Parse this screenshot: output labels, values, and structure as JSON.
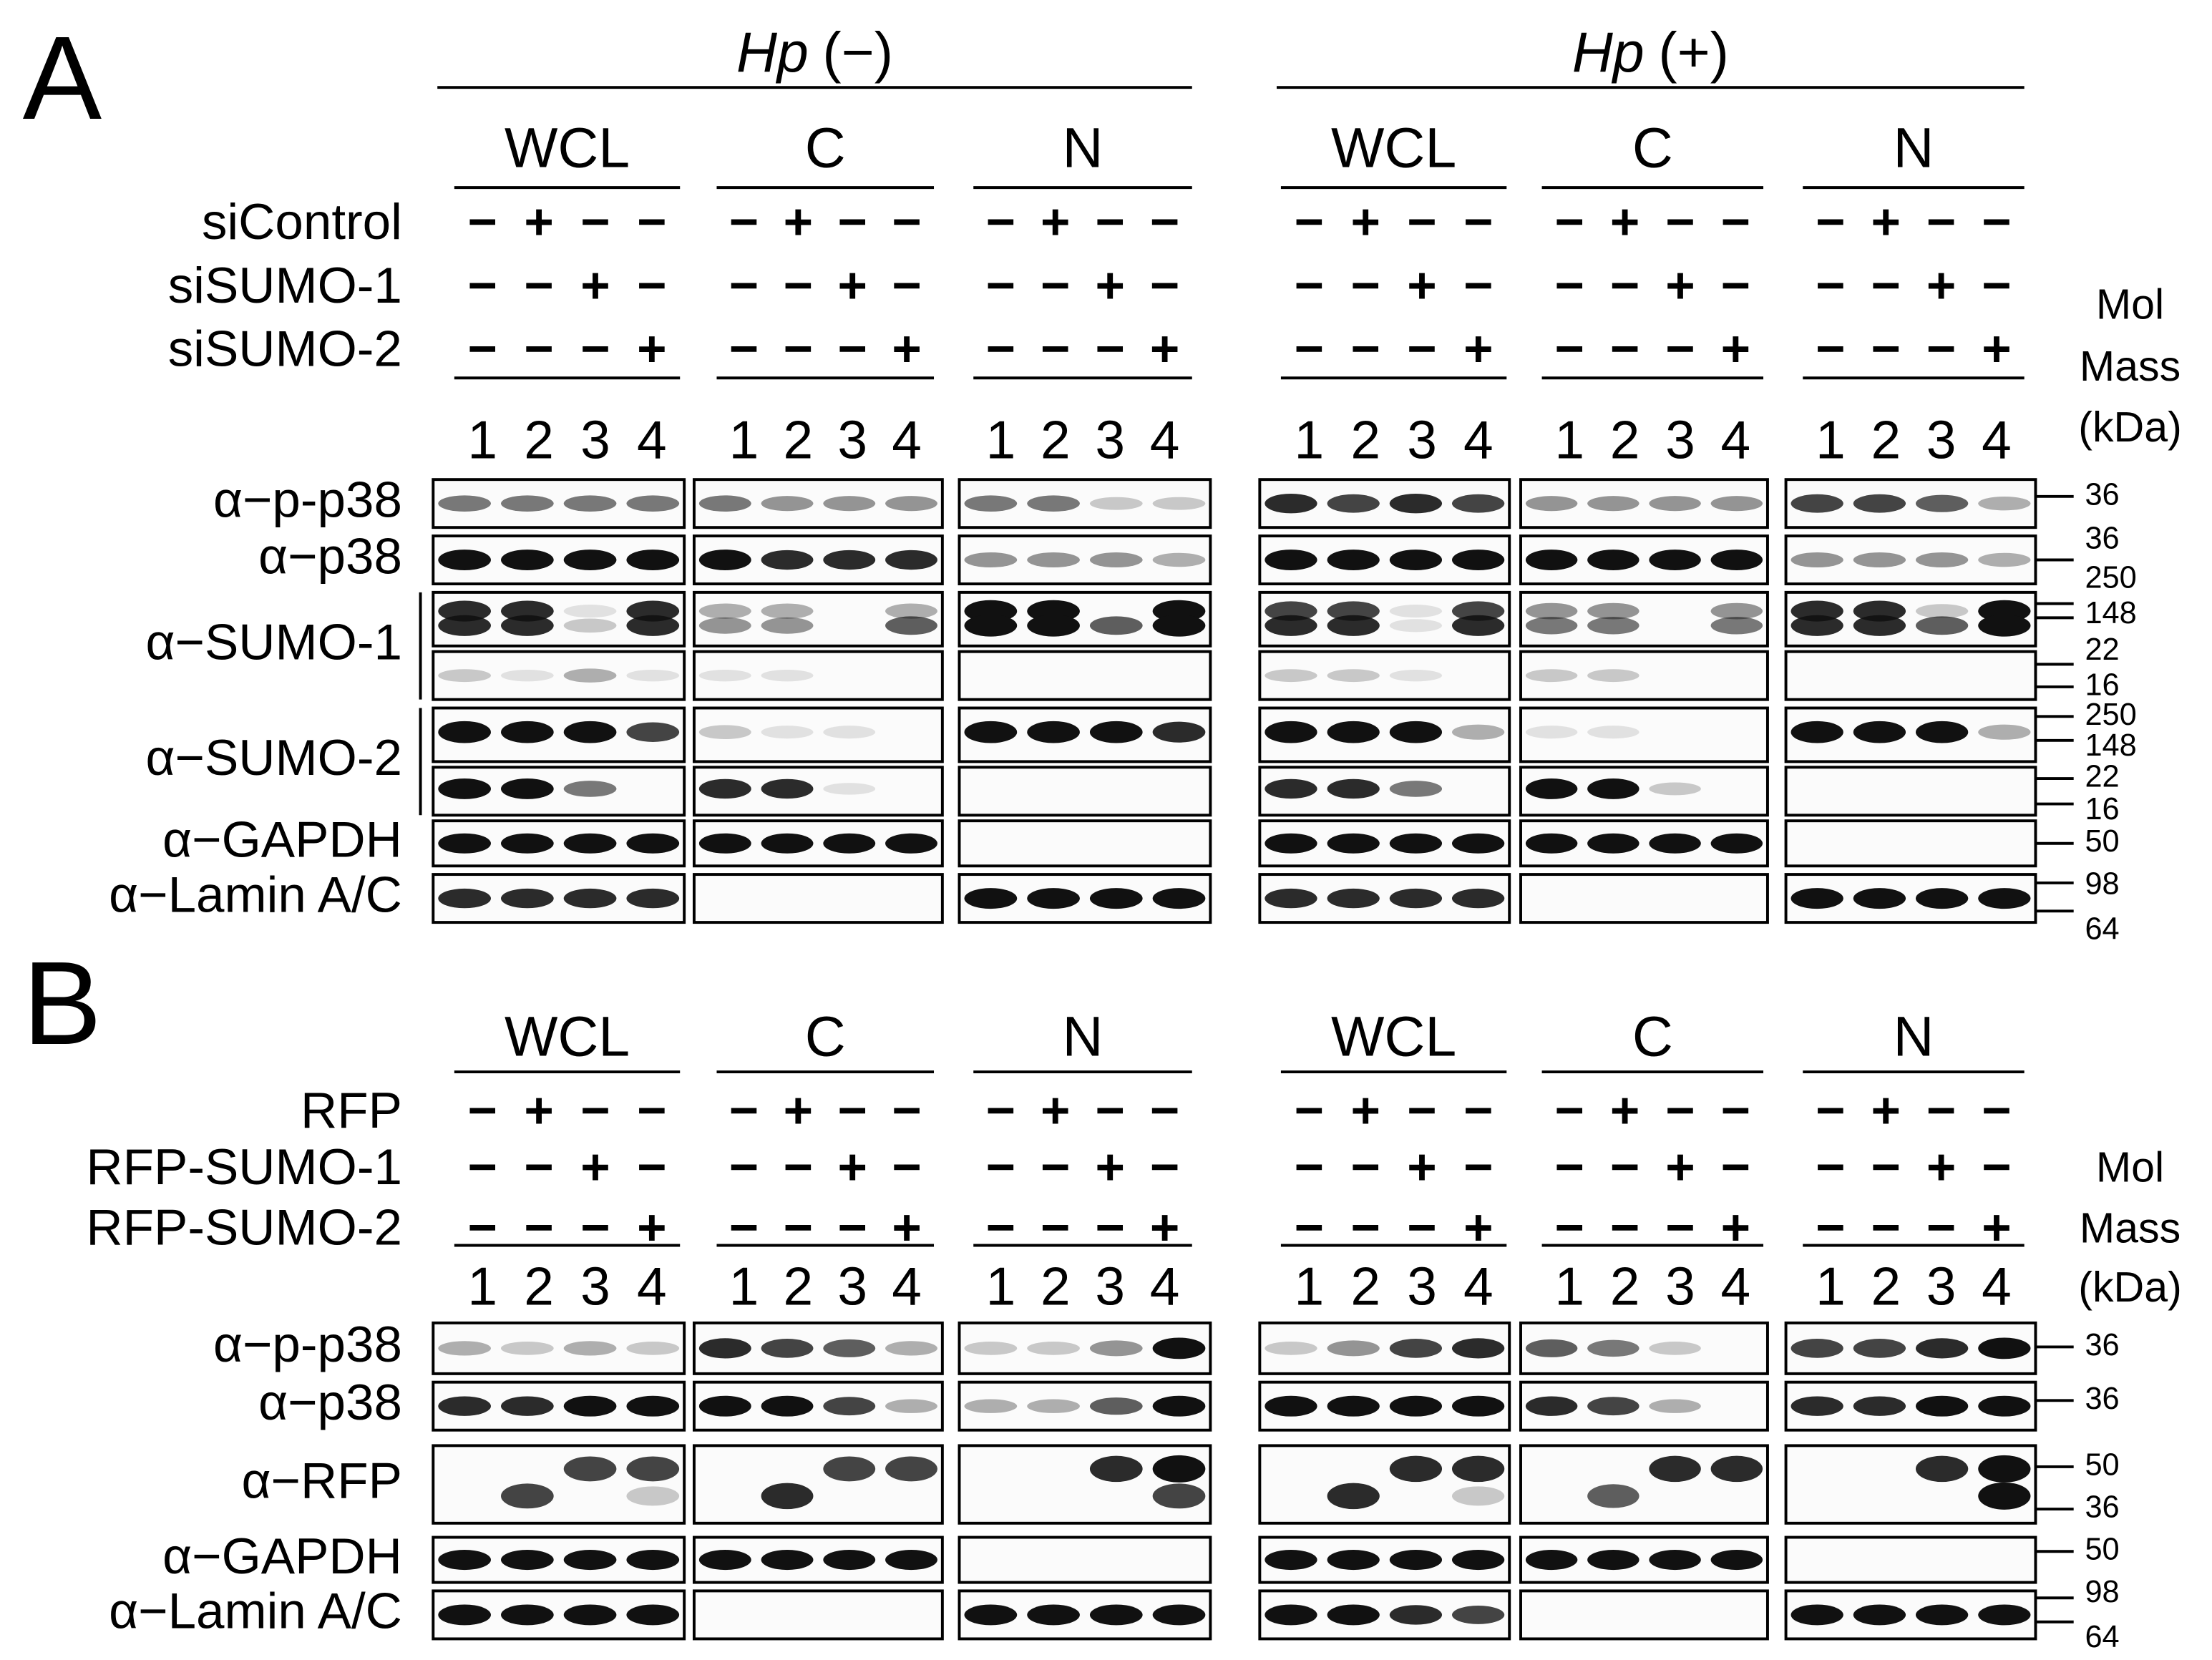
{
  "panels": [
    {
      "label": "A",
      "hp": [
        {
          "name": "Hp",
          "sign": "(−)"
        },
        {
          "name": "Hp",
          "sign": "(+)"
        }
      ],
      "groups": [
        "WCL",
        "C",
        "N",
        "WCL",
        "C",
        "N"
      ],
      "conditions": [
        {
          "name": "siControl",
          "signs": [
            "−",
            "+",
            "−",
            "−"
          ]
        },
        {
          "name": "siSUMO-1",
          "signs": [
            "−",
            "−",
            "+",
            "−"
          ]
        },
        {
          "name": "siSUMO-2",
          "signs": [
            "−",
            "−",
            "−",
            "+"
          ]
        }
      ],
      "lanes": [
        1,
        2,
        3,
        4
      ],
      "mol_mass": [
        "Mol",
        "Mass",
        "(kDa)"
      ],
      "blots": [
        "α−p-p38",
        "α−p38",
        "α−SUMO-1",
        "α−SUMO-2",
        "α−GAPDH",
        "α−Lamin A/C"
      ],
      "markers": [
        36,
        36,
        250,
        148,
        22,
        16,
        250,
        148,
        22,
        16,
        50,
        98,
        64
      ]
    },
    {
      "label": "B",
      "groups": [
        "WCL",
        "C",
        "N",
        "WCL",
        "C",
        "N"
      ],
      "conditions": [
        {
          "name": "RFP",
          "signs": [
            "−",
            "+",
            "−",
            "−"
          ]
        },
        {
          "name": "RFP-SUMO-1",
          "signs": [
            "−",
            "−",
            "+",
            "−"
          ]
        },
        {
          "name": "RFP-SUMO-2",
          "signs": [
            "−",
            "−",
            "−",
            "+"
          ]
        }
      ],
      "lanes": [
        1,
        2,
        3,
        4
      ],
      "mol_mass": [
        "Mol",
        "Mass",
        "(kDa)"
      ],
      "blots": [
        "α−p-p38",
        "α−p38",
        "α−RFP",
        "α−GAPDH",
        "α−Lamin A/C"
      ],
      "markers": [
        36,
        36,
        50,
        36,
        50,
        98,
        64
      ]
    }
  ]
}
